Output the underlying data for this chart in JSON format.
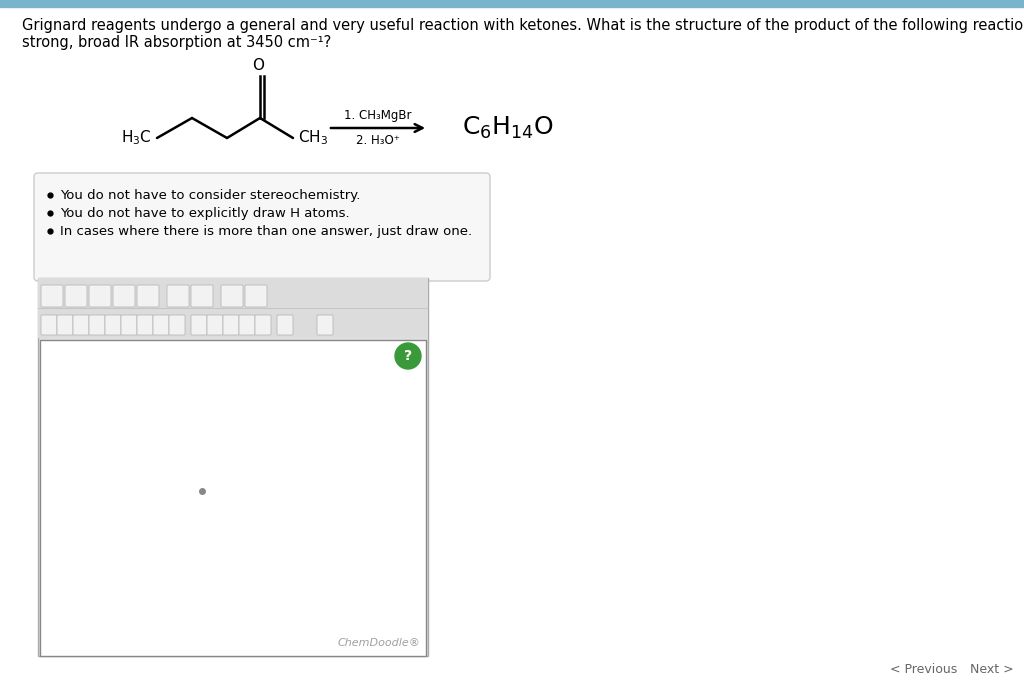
{
  "page_bg": "#ffffff",
  "top_bar_color": "#7ab3cc",
  "question_line1": "Grignard reagents undergo a general and very useful reaction with ketones. What is the structure of the product of the following reaction if it has a",
  "question_line2": "strong, broad IR absorption at 3450 cm⁻¹?",
  "reagent_line1": "1. CH₃MgBr",
  "reagent_line2": "2. H₃O⁺",
  "bullet_points": [
    "You do not have to consider stereochemistry.",
    "You do not have to explicitly draw H atoms.",
    "In cases where there is more than one answer, just draw one."
  ],
  "chemdoodle_text": "ChemDoodle®",
  "chemdoodle_color": "#a0a0a0",
  "nav_prev": "< Previous",
  "nav_next": "Next >",
  "nav_color": "#666666",
  "bullet_box_bg": "#f7f7f7",
  "bullet_box_border": "#cccccc",
  "toolbar_bg": "#e8e8e8",
  "canvas_bg": "#ffffff",
  "canvas_border": "#888888",
  "green_circle_color": "#3a9a3a",
  "dot_color": "#888888"
}
